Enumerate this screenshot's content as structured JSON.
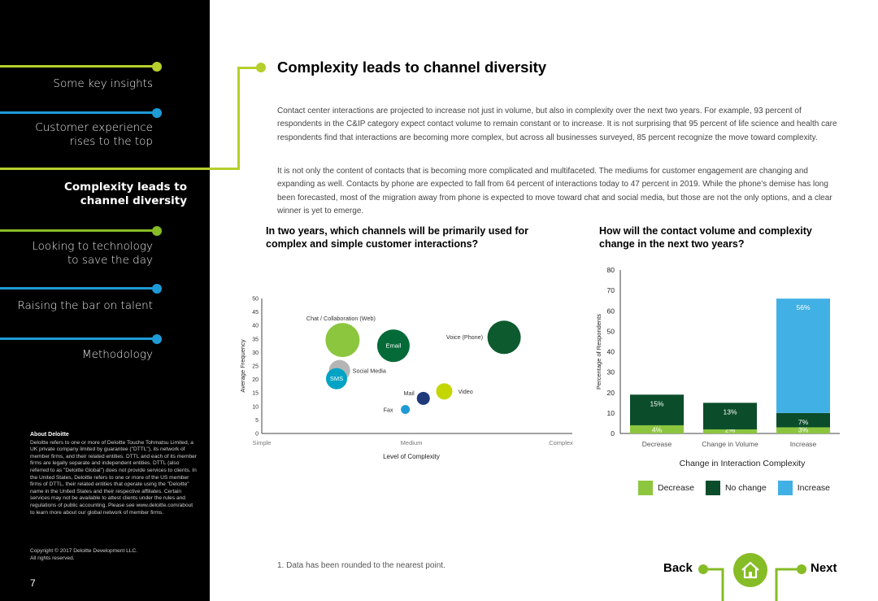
{
  "sidebar": {
    "items": [
      {
        "label": "Some key insights",
        "color": "#b6cf2c"
      },
      {
        "label": "Customer experience rises to the top",
        "line1": "Customer experience",
        "line2": "rises to the top",
        "color": "#1e9bd7"
      },
      {
        "label": "Complexity leads to channel diversity",
        "line1": "Complexity leads to",
        "line2": "channel diversity",
        "color": "#b6cf2c"
      },
      {
        "label": "Looking to technology to save the day",
        "line1": "Looking to technology",
        "line2": "to save the day",
        "color": "#86bc25"
      },
      {
        "label": "Raising the bar on talent",
        "color": "#1e9bd7"
      },
      {
        "label": "Methodology",
        "color": "#1e9bd7"
      }
    ],
    "about_title": "About Deloitte",
    "about_text": "Deloitte refers to one or more of Deloitte Touche Tohmatsu Limited, a UK private company limited by guarantee (\"DTTL\"), its network of member firms, and their related entities. DTTL and each of its member firms are legally separate and independent entities. DTTL (also referred to as \"Deloitte Global\") does not provide services to clients. In the United States, Deloitte refers to one or more of the US member firms of DTTL, their related entities that operate using the \"Deloitte\" name in the United States and their respective affiliates. Certain services may not be available to attest clients under the rules and regulations of public accounting. Please see www.deloitte.com/about to learn more about our global network of member firms.",
    "copyright": "Copyright © 2017 Deloitte Development LLC.",
    "rights": "All rights reserved.",
    "page_number": "7"
  },
  "main": {
    "title": "Complexity leads to channel diversity",
    "paragraph1": "Contact center interactions are projected to increase not just in volume, but also in complexity over the next two years. For example, 93 percent of respondents in the C&IP category expect contact volume to remain constant or to increase.  It is not surprising that 95 percent of life science and health care respondents find that interactions are becoming more complex, but across all businesses surveyed, 85 percent recognize the move toward complexity.",
    "paragraph2": "It is not only the content of contacts that is becoming more complicated and multifaceted. The mediums for customer engagement are changing and expanding as well. Contacts by phone are expected to fall from 64 percent of interactions today to 47 percent in 2019. While the phone's demise has long been forecasted, most of the migration away from phone is expected to move toward chat and social media, but those are not the only options, and a clear winner is yet to emerge.",
    "footnote": "1. Data has been rounded to the nearest point."
  },
  "chart_data": [
    {
      "type": "scatter",
      "title": "In two years, which channels will be primarily used for complex and simple customer interactions?",
      "xlabel": "Level of Complexity",
      "ylabel": "Average Frequency",
      "x_ticks": [
        "Simple",
        "Medium",
        "Complex"
      ],
      "ylim": [
        0,
        50
      ],
      "y_ticks": [
        0,
        5,
        10,
        15,
        20,
        25,
        30,
        35,
        40,
        45,
        50
      ],
      "points": [
        {
          "label": "Chat / Collaboration (Web)",
          "x": 0.27,
          "y": 34.6,
          "size": 21,
          "color": "#8cc63f"
        },
        {
          "label": "Email",
          "x": 0.44,
          "y": 32.5,
          "size": 20,
          "color": "#046a38",
          "label_inside": true
        },
        {
          "label": "Voice (Phone)",
          "x": 0.81,
          "y": 35.6,
          "size": 20.5,
          "color": "#0d5a2f"
        },
        {
          "label": "Social Media",
          "x": 0.26,
          "y": 23.3,
          "size": 13,
          "color": "#b5b5b5"
        },
        {
          "label": "SMS",
          "x": 0.25,
          "y": 20.3,
          "size": 13,
          "color": "#00a3c4",
          "label_inside": true
        },
        {
          "label": "Mail",
          "x": 0.54,
          "y": 13,
          "size": 8,
          "color": "#1e3a7b"
        },
        {
          "label": "Video",
          "x": 0.61,
          "y": 15.6,
          "size": 10,
          "color": "#c4d600"
        },
        {
          "label": "Fax",
          "x": 0.48,
          "y": 8.9,
          "size": 5.5,
          "color": "#1e9bd7"
        }
      ]
    },
    {
      "type": "bar",
      "stacked": true,
      "title": "How will the contact volume and complexity change in the next two years?",
      "xlabel": "Change in  Interaction Complexity",
      "ylabel": "Percentage of Respondents",
      "categories": [
        "Decrease",
        "Change in Volume",
        "Increase"
      ],
      "ylim": [
        0,
        80
      ],
      "y_ticks": [
        0,
        10,
        20,
        30,
        40,
        50,
        60,
        70,
        80
      ],
      "series": [
        {
          "name": "Decrease",
          "values": [
            4,
            2,
            3
          ],
          "labels": [
            "4%",
            "2%",
            "3%"
          ],
          "color": "#8cc63f"
        },
        {
          "name": "No change",
          "values": [
            15,
            13,
            7
          ],
          "labels": [
            "15%",
            "13%",
            "7%"
          ],
          "color": "#0b4d2a"
        },
        {
          "name": "Increase",
          "values": [
            0,
            0,
            56
          ],
          "labels": [
            "",
            "",
            "56%"
          ],
          "color": "#41b0e4"
        }
      ],
      "legend_position": "bottom"
    }
  ],
  "nav": {
    "back": "Back",
    "next": "Next"
  },
  "colors": {
    "accent_green": "#b6cf2c",
    "accent_blue": "#1e9bd7",
    "home_green": "#86bc25"
  }
}
